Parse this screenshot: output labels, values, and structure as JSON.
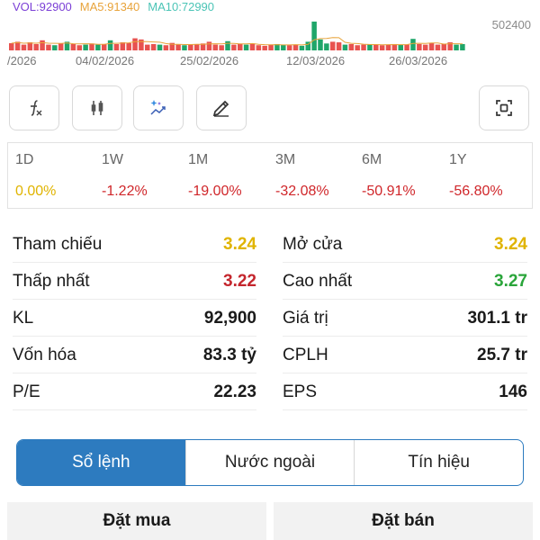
{
  "volume": {
    "vol_label": "VOL:92900",
    "ma5_label": "MA5:91340",
    "ma10_label": "MA10:72990",
    "max_label": "502400",
    "bars": [
      {
        "v": 0.25,
        "c": "red"
      },
      {
        "v": 0.3,
        "c": "red"
      },
      {
        "v": 0.2,
        "c": "red"
      },
      {
        "v": 0.28,
        "c": "red"
      },
      {
        "v": 0.22,
        "c": "red"
      },
      {
        "v": 0.35,
        "c": "red"
      },
      {
        "v": 0.2,
        "c": "red"
      },
      {
        "v": 0.18,
        "c": "green"
      },
      {
        "v": 0.25,
        "c": "red"
      },
      {
        "v": 0.3,
        "c": "green"
      },
      {
        "v": 0.22,
        "c": "red"
      },
      {
        "v": 0.18,
        "c": "red"
      },
      {
        "v": 0.2,
        "c": "green"
      },
      {
        "v": 0.24,
        "c": "red"
      },
      {
        "v": 0.2,
        "c": "green"
      },
      {
        "v": 0.22,
        "c": "red"
      },
      {
        "v": 0.35,
        "c": "green"
      },
      {
        "v": 0.22,
        "c": "red"
      },
      {
        "v": 0.28,
        "c": "red"
      },
      {
        "v": 0.25,
        "c": "red"
      },
      {
        "v": 0.42,
        "c": "red"
      },
      {
        "v": 0.38,
        "c": "red"
      },
      {
        "v": 0.2,
        "c": "red"
      },
      {
        "v": 0.22,
        "c": "red"
      },
      {
        "v": 0.2,
        "c": "green"
      },
      {
        "v": 0.18,
        "c": "red"
      },
      {
        "v": 0.26,
        "c": "red"
      },
      {
        "v": 0.2,
        "c": "red"
      },
      {
        "v": 0.18,
        "c": "green"
      },
      {
        "v": 0.2,
        "c": "red"
      },
      {
        "v": 0.22,
        "c": "red"
      },
      {
        "v": 0.24,
        "c": "red"
      },
      {
        "v": 0.3,
        "c": "red"
      },
      {
        "v": 0.2,
        "c": "red"
      },
      {
        "v": 0.18,
        "c": "red"
      },
      {
        "v": 0.32,
        "c": "green"
      },
      {
        "v": 0.2,
        "c": "red"
      },
      {
        "v": 0.22,
        "c": "red"
      },
      {
        "v": 0.2,
        "c": "green"
      },
      {
        "v": 0.24,
        "c": "red"
      },
      {
        "v": 0.18,
        "c": "red"
      },
      {
        "v": 0.16,
        "c": "red"
      },
      {
        "v": 0.2,
        "c": "red"
      },
      {
        "v": 0.22,
        "c": "green"
      },
      {
        "v": 0.2,
        "c": "green"
      },
      {
        "v": 0.18,
        "c": "red"
      },
      {
        "v": 0.2,
        "c": "red"
      },
      {
        "v": 0.16,
        "c": "green"
      },
      {
        "v": 0.3,
        "c": "green"
      },
      {
        "v": 1.0,
        "c": "green"
      },
      {
        "v": 0.38,
        "c": "green"
      },
      {
        "v": 0.24,
        "c": "green"
      },
      {
        "v": 0.3,
        "c": "red"
      },
      {
        "v": 0.28,
        "c": "red"
      },
      {
        "v": 0.2,
        "c": "green"
      },
      {
        "v": 0.22,
        "c": "red"
      },
      {
        "v": 0.18,
        "c": "red"
      },
      {
        "v": 0.2,
        "c": "red"
      },
      {
        "v": 0.22,
        "c": "green"
      },
      {
        "v": 0.2,
        "c": "red"
      },
      {
        "v": 0.18,
        "c": "red"
      },
      {
        "v": 0.2,
        "c": "red"
      },
      {
        "v": 0.22,
        "c": "red"
      },
      {
        "v": 0.2,
        "c": "green"
      },
      {
        "v": 0.2,
        "c": "red"
      },
      {
        "v": 0.4,
        "c": "green"
      },
      {
        "v": 0.22,
        "c": "red"
      },
      {
        "v": 0.2,
        "c": "red"
      },
      {
        "v": 0.26,
        "c": "red"
      },
      {
        "v": 0.2,
        "c": "red"
      },
      {
        "v": 0.22,
        "c": "red"
      },
      {
        "v": 0.28,
        "c": "red"
      },
      {
        "v": 0.2,
        "c": "green"
      },
      {
        "v": 0.22,
        "c": "green"
      }
    ]
  },
  "dates": [
    "/2026",
    "04/02/2026",
    "25/02/2026",
    "12/03/2026",
    "26/03/2026"
  ],
  "performance": [
    {
      "label": "1D",
      "value": "0.00%",
      "tone": "yellow"
    },
    {
      "label": "1W",
      "value": "-1.22%",
      "tone": "red"
    },
    {
      "label": "1M",
      "value": "-19.00%",
      "tone": "red"
    },
    {
      "label": "3M",
      "value": "-32.08%",
      "tone": "red"
    },
    {
      "label": "6M",
      "value": "-50.91%",
      "tone": "red"
    },
    {
      "label": "1Y",
      "value": "-56.80%",
      "tone": "red"
    }
  ],
  "stats": {
    "rows": [
      {
        "l_label": "Tham chiếu",
        "l_value": "3.24",
        "l_tone": "yellow",
        "r_label": "Mở cửa",
        "r_value": "3.24",
        "r_tone": "yellow"
      },
      {
        "l_label": "Thấp nhất",
        "l_value": "3.22",
        "l_tone": "red",
        "r_label": "Cao nhất",
        "r_value": "3.27",
        "r_tone": "green"
      },
      {
        "l_label": "KL",
        "l_value": "92,900",
        "l_tone": "",
        "r_label": "Giá trị",
        "r_value": "301.1 tr",
        "r_tone": ""
      },
      {
        "l_label": "Vốn hóa",
        "l_value": "83.3 tỷ",
        "l_tone": "",
        "r_label": "CPLH",
        "r_value": "25.7 tr",
        "r_tone": ""
      },
      {
        "l_label": "P/E",
        "l_value": "22.23",
        "l_tone": "",
        "r_label": "EPS",
        "r_value": "146",
        "r_tone": ""
      }
    ]
  },
  "tabs": [
    "Sổ lệnh",
    "Nước ngoài",
    "Tín hiệu"
  ],
  "buttons": {
    "buy": "Đặt mua",
    "sell": "Đặt bán"
  },
  "colors": {
    "red": "#e8524f",
    "green": "#1fa66a",
    "accent": "#2d7bbf"
  }
}
